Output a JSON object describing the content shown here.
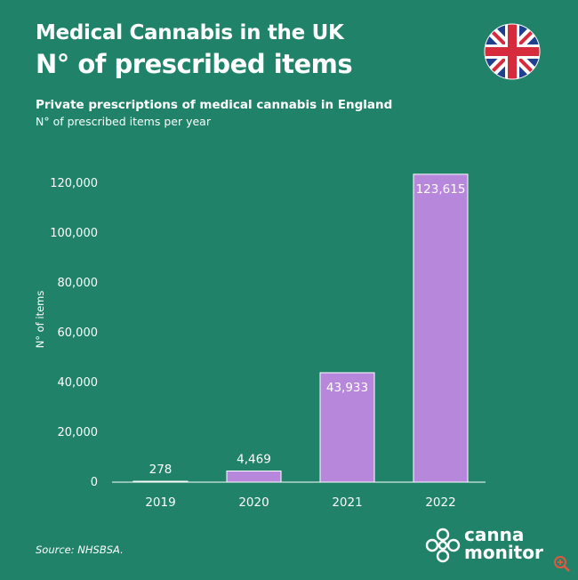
{
  "header": {
    "title": "Medical Cannabis in the UK",
    "subtitle": "N° of prescribed items"
  },
  "chart_caption": {
    "title": "Private prescriptions of medical cannabis in England",
    "subtitle": "N° of prescribed items per year"
  },
  "source": "Source: NHSBSA.",
  "logo": {
    "line1": "canna",
    "line2": "monitor"
  },
  "icons": {
    "flag": "uk-flag-icon",
    "logo": "cannamonitor-logo-icon",
    "zoom": "zoom-icon"
  },
  "colors": {
    "background": "#208369",
    "bar": "#b787dc",
    "bar_stroke": "#ffffff",
    "text": "#ffffff"
  },
  "chart_data": {
    "type": "bar",
    "categories": [
      "2019",
      "2020",
      "2021",
      "2022"
    ],
    "values": [
      278,
      4469,
      43933,
      123615
    ],
    "value_labels": [
      "278",
      "4,469",
      "43,933",
      "123,615"
    ],
    "ylabel": "N° of items",
    "xlabel": "",
    "ylim": [
      0,
      125000
    ],
    "yticks": [
      0,
      20000,
      40000,
      60000,
      80000,
      100000,
      120000
    ],
    "ytick_labels": [
      "0",
      "20,000",
      "40,000",
      "60,000",
      "80,000",
      "100,000",
      "120,000"
    ],
    "grid": false,
    "legend": "none"
  }
}
